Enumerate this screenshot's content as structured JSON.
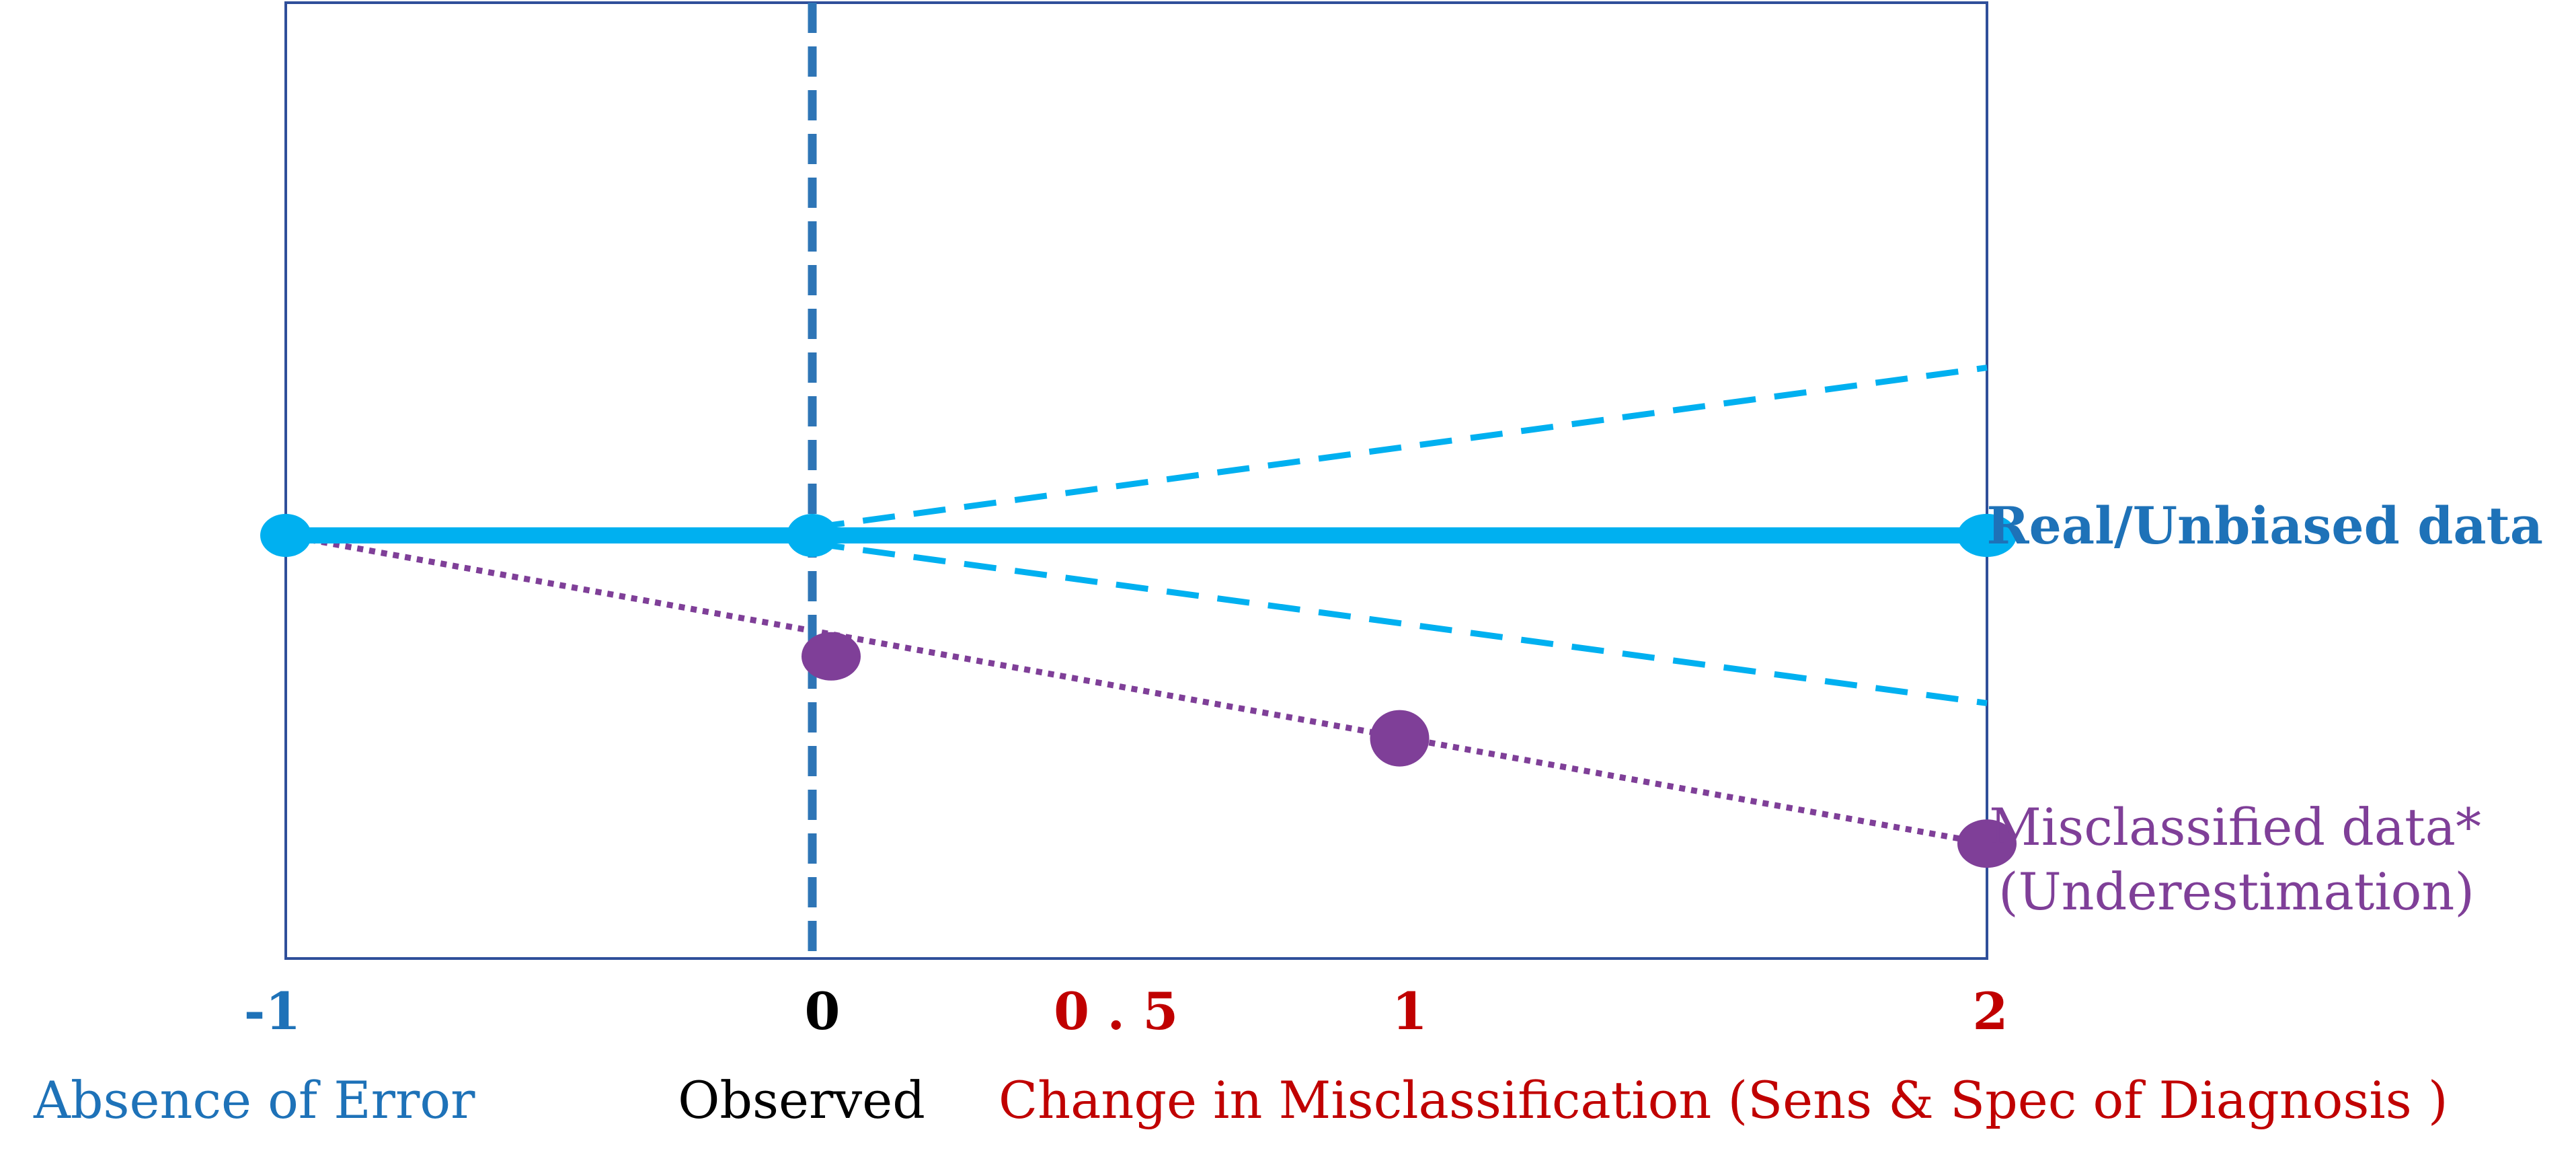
{
  "chart_data": {
    "type": "line",
    "title": "",
    "xlabel": "",
    "ylabel": "",
    "xlim": [
      -1,
      2
    ],
    "ylim": [
      -1,
      1
    ],
    "grid": false,
    "ticks": [
      {
        "x": -1,
        "label": "-1",
        "color": "#1e72b8"
      },
      {
        "x": 0,
        "label": "0",
        "color": "#000000"
      },
      {
        "x": 0.5,
        "label": "0 . 5",
        "color": "#c00000"
      },
      {
        "x": 1,
        "label": "1",
        "color": "#c00000"
      },
      {
        "x": 2,
        "label": "2",
        "color": "#c00000"
      }
    ],
    "captions": [
      {
        "text": "Absence of Error",
        "color": "#1e72b8"
      },
      {
        "text": "Observed",
        "color": "#000000"
      },
      {
        "text": "Change in Misclassification (Sens & Spec of Diagnosis )",
        "color": "#c00000"
      }
    ],
    "series": [
      {
        "name": "Real/Unbiased data",
        "color": "#00b0f0",
        "style": "solid",
        "x": [
          -1,
          0,
          2
        ],
        "y": [
          0,
          0,
          0
        ]
      },
      {
        "name": "Misclassified data*\n(Underestimation)",
        "color": "#7f3f98",
        "style": "dotted",
        "line": {
          "x": [
            -1,
            2
          ],
          "y": [
            0,
            -0.79
          ]
        },
        "x": [
          0,
          1,
          2
        ],
        "y": [
          -0.31,
          -0.52,
          -0.79
        ]
      }
    ],
    "bounds": [
      {
        "color": "#00b0f0",
        "style": "dashed",
        "x": [
          0,
          2
        ],
        "y": [
          0.02,
          0.43
        ]
      },
      {
        "color": "#00b0f0",
        "style": "dashed",
        "x": [
          0,
          2
        ],
        "y": [
          -0.02,
          -0.43
        ]
      }
    ],
    "reference_line": {
      "x": 0,
      "color": "#2e75b6",
      "style": "dashed"
    },
    "legend_labels": [
      {
        "text": "Real/Unbiased data",
        "color": "#1e72b8",
        "bold": true
      },
      {
        "text": "Misclassified data*",
        "color": "#7f3f98",
        "bold": false
      },
      {
        "text": "(Underestimation)",
        "color": "#7f3f98",
        "bold": false
      }
    ]
  }
}
